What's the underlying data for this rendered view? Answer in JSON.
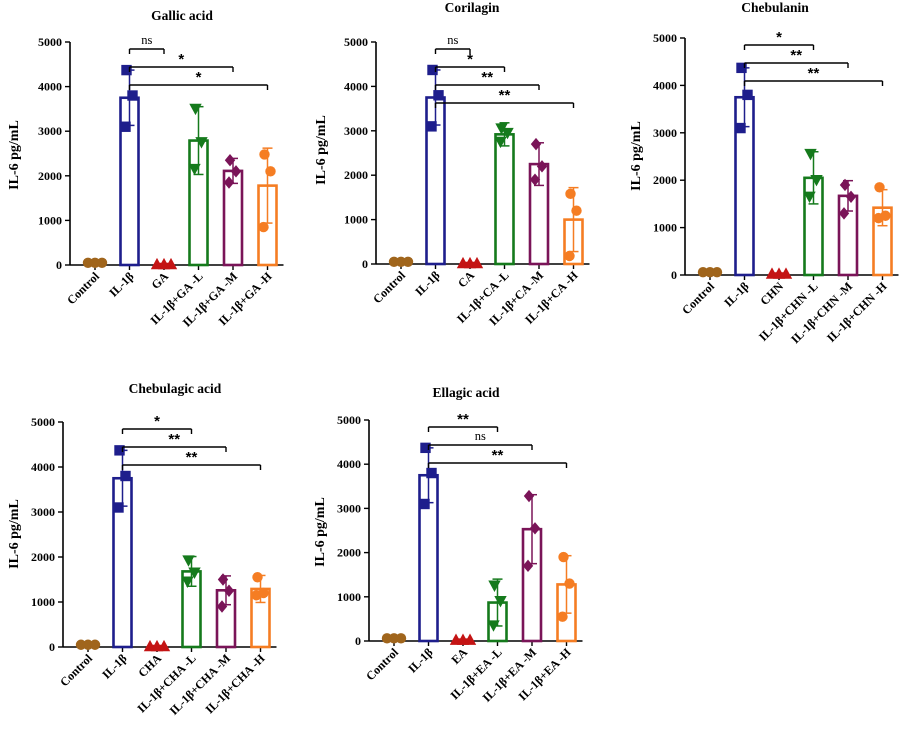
{
  "colors": {
    "Control": "#a0651c",
    "IL": "#1e1e8c",
    "Drug": "#c41414",
    "L": "#157a1c",
    "M": "#7a1458",
    "H": "#f57d23"
  },
  "chart_data": [
    {
      "type": "bar",
      "title": "Gallic acid",
      "ylabel": "IL-6 pg/mL",
      "ylim": [
        0,
        5000
      ],
      "yticks": [
        0,
        1000,
        2000,
        3000,
        4000,
        5000
      ],
      "categories": [
        "Control",
        "IL-1β",
        "GA",
        "IL-1β+GA -L",
        "IL-1β+GA -M",
        "IL-1β+GA -H"
      ],
      "values": [
        50,
        3750,
        20,
        2790,
        2110,
        1780
      ],
      "errors": [
        0,
        620,
        0,
        760,
        280,
        840
      ],
      "points": [
        [
          50,
          50,
          50
        ],
        [
          3100,
          3800,
          4370
        ],
        [
          20,
          20,
          20
        ],
        [
          2150,
          2750,
          3500
        ],
        [
          1850,
          2100,
          2350
        ],
        [
          850,
          2100,
          2480
        ]
      ],
      "markers": [
        "circle",
        "square",
        "triangle-up",
        "triangle-down",
        "diamond",
        "circle"
      ],
      "significance": [
        {
          "to": 2,
          "label": "ns"
        },
        {
          "to": 4,
          "label": "*"
        },
        {
          "to": 5,
          "label": "*"
        }
      ]
    },
    {
      "type": "bar",
      "title": "Corilagin",
      "ylabel": "IL-6 pg/mL",
      "ylim": [
        0,
        5000
      ],
      "yticks": [
        0,
        1000,
        2000,
        3000,
        4000,
        5000
      ],
      "categories": [
        "Control",
        "IL-1β",
        "CA",
        "IL-1β+CA -L",
        "IL-1β+CA -M",
        "IL-1β+CA -H"
      ],
      "values": [
        50,
        3750,
        20,
        2920,
        2250,
        1000
      ],
      "errors": [
        0,
        620,
        0,
        260,
        480,
        720
      ],
      "points": [
        [
          50,
          50,
          50
        ],
        [
          3100,
          3800,
          4370
        ],
        [
          20,
          20,
          20
        ],
        [
          2750,
          2950,
          3050
        ],
        [
          1900,
          2200,
          2700
        ],
        [
          180,
          1200,
          1580
        ]
      ],
      "markers": [
        "circle",
        "square",
        "triangle-up",
        "triangle-down",
        "diamond",
        "circle"
      ],
      "significance": [
        {
          "to": 2,
          "label": "ns"
        },
        {
          "to": 3,
          "label": "*"
        },
        {
          "to": 4,
          "label": "**"
        },
        {
          "to": 5,
          "label": "**"
        }
      ]
    },
    {
      "type": "bar",
      "title": "Chebulanin",
      "ylabel": "IL-6 pg/mL",
      "ylim": [
        0,
        5000
      ],
      "yticks": [
        0,
        1000,
        2000,
        3000,
        4000,
        5000
      ],
      "categories": [
        "Control",
        "IL-1β",
        "CHN",
        "IL-1β+CHN -L",
        "IL-1β+CHN -M",
        "IL-1β+CHN -H"
      ],
      "values": [
        60,
        3750,
        30,
        2050,
        1670,
        1420
      ],
      "errors": [
        0,
        620,
        0,
        550,
        320,
        380
      ],
      "points": [
        [
          60,
          60,
          60
        ],
        [
          3100,
          3800,
          4370
        ],
        [
          30,
          30,
          30
        ],
        [
          1650,
          2000,
          2550
        ],
        [
          1300,
          1650,
          1900
        ],
        [
          1200,
          1250,
          1850
        ]
      ],
      "markers": [
        "circle",
        "square",
        "triangle-up",
        "triangle-down",
        "diamond",
        "circle"
      ],
      "significance": [
        {
          "to": 3,
          "label": "*"
        },
        {
          "to": 4,
          "label": "**"
        },
        {
          "to": 5,
          "label": "**"
        }
      ]
    },
    {
      "type": "bar",
      "title": "Chebulagic acid",
      "ylabel": "IL-6 pg/mL",
      "ylim": [
        0,
        5000
      ],
      "yticks": [
        0,
        1000,
        2000,
        3000,
        4000,
        5000
      ],
      "categories": [
        "Control",
        "IL-1β",
        "CHA",
        "IL-1β+CHA -L",
        "IL-1β+CHA -M",
        "IL-1β+CHA -H"
      ],
      "values": [
        50,
        3750,
        20,
        1680,
        1260,
        1290
      ],
      "errors": [
        0,
        620,
        0,
        330,
        320,
        300
      ],
      "points": [
        [
          50,
          50,
          50
        ],
        [
          3100,
          3800,
          4370
        ],
        [
          20,
          20,
          20
        ],
        [
          1450,
          1650,
          1920
        ],
        [
          900,
          1250,
          1500
        ],
        [
          1150,
          1200,
          1550
        ]
      ],
      "markers": [
        "circle",
        "square",
        "triangle-up",
        "triangle-down",
        "diamond",
        "circle"
      ],
      "significance": [
        {
          "to": 3,
          "label": "*"
        },
        {
          "to": 4,
          "label": "**"
        },
        {
          "to": 5,
          "label": "**"
        }
      ]
    },
    {
      "type": "bar",
      "title": "Ellagic acid",
      "ylabel": "IL-6 pg/mL",
      "ylim": [
        0,
        5000
      ],
      "yticks": [
        0,
        1000,
        2000,
        3000,
        4000,
        5000
      ],
      "categories": [
        "Control",
        "IL-1β",
        "EA",
        "IL-1β+EA -L",
        "IL-1β+EA -M",
        "IL-1β+EA -H"
      ],
      "values": [
        60,
        3750,
        30,
        870,
        2530,
        1280
      ],
      "errors": [
        0,
        620,
        0,
        530,
        780,
        650
      ],
      "points": [
        [
          60,
          60,
          60
        ],
        [
          3100,
          3800,
          4370
        ],
        [
          30,
          30,
          30
        ],
        [
          350,
          900,
          1250
        ],
        [
          1700,
          2550,
          3280
        ],
        [
          550,
          1300,
          1900
        ]
      ],
      "markers": [
        "circle",
        "square",
        "triangle-up",
        "triangle-down",
        "diamond",
        "circle"
      ],
      "significance": [
        {
          "to": 3,
          "label": "**"
        },
        {
          "to": 4,
          "label": "ns"
        },
        {
          "to": 5,
          "label": "**"
        }
      ]
    }
  ]
}
